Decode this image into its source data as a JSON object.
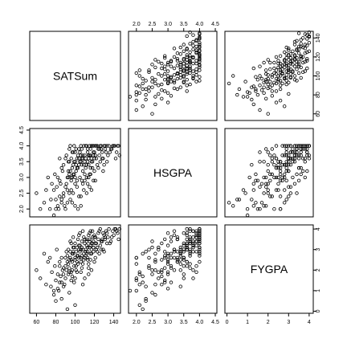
{
  "chart_data": {
    "type": "scatter",
    "variables": [
      "SATSum",
      "HSGPA",
      "FYGPA"
    ],
    "ranges": {
      "SATSum": [
        53,
        147
      ],
      "HSGPA": [
        1.75,
        4.55
      ],
      "FYGPA": [
        -0.1,
        4.2
      ]
    },
    "ticks": {
      "SATSum": [
        60,
        80,
        100,
        120,
        140
      ],
      "HSGPA": [
        2.0,
        2.5,
        3.0,
        3.5,
        4.0,
        4.5
      ],
      "FYGPA": [
        0,
        1,
        2,
        3,
        4
      ]
    },
    "tick_labels": {
      "SATSum": [
        "60",
        "80",
        "100",
        "120",
        "140"
      ],
      "HSGPA": [
        "2.0",
        "2.5",
        "3.0",
        "3.5",
        "4.0",
        "4.5"
      ],
      "FYGPA": [
        "0",
        "1",
        "2",
        "3",
        "4"
      ]
    },
    "grid": false,
    "legend": "none",
    "point_color": "#000000",
    "data": [
      [
        83,
        2.0,
        1.0
      ],
      [
        86,
        2.2,
        1.4
      ],
      [
        88,
        2.5,
        1.8
      ],
      [
        90,
        2.7,
        1.6
      ],
      [
        91,
        2.8,
        2.0
      ],
      [
        93,
        3.0,
        2.3
      ],
      [
        94,
        3.1,
        2.1
      ],
      [
        95,
        3.2,
        2.6
      ],
      [
        96,
        3.0,
        1.9
      ],
      [
        97,
        3.3,
        2.4
      ],
      [
        98,
        3.4,
        2.8
      ],
      [
        99,
        3.5,
        2.2
      ],
      [
        100,
        3.0,
        2.5
      ],
      [
        101,
        3.2,
        2.9
      ],
      [
        102,
        3.6,
        3.1
      ],
      [
        103,
        3.7,
        2.7
      ],
      [
        104,
        3.4,
        3.0
      ],
      [
        105,
        3.8,
        3.2
      ],
      [
        106,
        3.5,
        2.6
      ],
      [
        107,
        3.9,
        3.4
      ],
      [
        108,
        3.6,
        3.0
      ],
      [
        109,
        4.0,
        3.6
      ],
      [
        110,
        3.7,
        3.3
      ],
      [
        111,
        3.3,
        2.9
      ],
      [
        112,
        4.0,
        3.5
      ],
      [
        113,
        3.8,
        3.1
      ],
      [
        114,
        3.6,
        3.7
      ],
      [
        115,
        4.0,
        3.8
      ],
      [
        116,
        3.9,
        3.2
      ],
      [
        117,
        3.5,
        3.0
      ],
      [
        118,
        4.0,
        3.9
      ],
      [
        119,
        3.7,
        3.4
      ],
      [
        120,
        3.8,
        3.6
      ],
      [
        122,
        4.0,
        3.3
      ],
      [
        124,
        3.9,
        3.8
      ],
      [
        126,
        4.0,
        4.0
      ],
      [
        128,
        3.6,
        3.5
      ],
      [
        130,
        4.0,
        3.7
      ],
      [
        132,
        3.8,
        3.9
      ],
      [
        135,
        4.0,
        4.0
      ],
      [
        138,
        3.9,
        3.6
      ],
      [
        141,
        4.0,
        4.0
      ],
      [
        144,
        4.0,
        3.8
      ],
      [
        146,
        3.7,
        4.0
      ],
      [
        75,
        2.3,
        1.2
      ],
      [
        78,
        2.6,
        0.8
      ],
      [
        80,
        2.0,
        1.5
      ],
      [
        82,
        3.0,
        1.1
      ],
      [
        84,
        2.4,
        2.2
      ],
      [
        85,
        2.8,
        1.7
      ],
      [
        87,
        3.2,
        2.0
      ],
      [
        89,
        2.1,
        1.3
      ],
      [
        92,
        2.6,
        2.4
      ],
      [
        93,
        3.5,
        1.8
      ],
      [
        95,
        2.3,
        2.9
      ],
      [
        96,
        2.9,
        1.5
      ],
      [
        97,
        3.8,
        2.0
      ],
      [
        98,
        2.5,
        3.1
      ],
      [
        99,
        3.1,
        1.4
      ],
      [
        100,
        2.8,
        3.3
      ],
      [
        101,
        3.9,
        2.2
      ],
      [
        102,
        2.7,
        1.9
      ],
      [
        103,
        3.3,
        3.5
      ],
      [
        104,
        2.4,
        2.6
      ],
      [
        105,
        3.0,
        3.8
      ],
      [
        106,
        4.0,
        2.4
      ],
      [
        107,
        2.9,
        2.1
      ],
      [
        108,
        3.2,
        3.9
      ],
      [
        109,
        2.6,
        2.8
      ],
      [
        110,
        3.5,
        1.6
      ],
      [
        111,
        4.0,
        2.7
      ],
      [
        112,
        3.0,
        3.2
      ],
      [
        113,
        2.8,
        2.5
      ],
      [
        114,
        3.4,
        2.3
      ],
      [
        115,
        3.1,
        3.4
      ],
      [
        116,
        3.7,
        3.9
      ],
      [
        117,
        4.0,
        2.8
      ],
      [
        118,
        3.3,
        3.6
      ],
      [
        119,
        2.9,
        2.9
      ],
      [
        120,
        3.6,
        2.4
      ],
      [
        121,
        4.0,
        3.6
      ],
      [
        123,
        3.4,
        3.1
      ],
      [
        125,
        3.7,
        2.8
      ],
      [
        127,
        3.9,
        3.4
      ],
      [
        129,
        3.2,
        3.0
      ],
      [
        131,
        4.0,
        3.5
      ],
      [
        133,
        3.5,
        3.8
      ],
      [
        136,
        3.8,
        3.3
      ],
      [
        139,
        4.0,
        3.9
      ],
      [
        142,
        3.6,
        4.0
      ],
      [
        60,
        2.5,
        2.0
      ],
      [
        64,
        2.0,
        1.6
      ],
      [
        68,
        2.2,
        2.8
      ],
      [
        70,
        2.6,
        1.3
      ],
      [
        72,
        3.0,
        2.4
      ],
      [
        74,
        2.0,
        2.6
      ],
      [
        76,
        2.8,
        1.9
      ],
      [
        79,
        3.1,
        2.2
      ],
      [
        81,
        2.7,
        3.0
      ],
      [
        84,
        3.6,
        2.4
      ],
      [
        86,
        2.3,
        0.6
      ],
      [
        88,
        3.4,
        1.2
      ],
      [
        90,
        2.0,
        2.6
      ],
      [
        91,
        3.7,
        2.9
      ],
      [
        94,
        2.5,
        0.9
      ],
      [
        95,
        4.0,
        3.4
      ],
      [
        97,
        2.2,
        1.7
      ],
      [
        99,
        4.0,
        3.1
      ],
      [
        100,
        2.1,
        0.3
      ],
      [
        101,
        3.4,
        2.0
      ],
      [
        103,
        2.0,
        2.3
      ],
      [
        104,
        3.9,
        3.7
      ],
      [
        106,
        2.4,
        3.0
      ],
      [
        107,
        3.4,
        2.7
      ],
      [
        108,
        2.8,
        1.3
      ],
      [
        110,
        3.1,
        2.6
      ],
      [
        112,
        2.5,
        3.4
      ],
      [
        113,
        3.9,
        2.9
      ],
      [
        114,
        3.0,
        1.8
      ],
      [
        115,
        2.7,
        3.1
      ],
      [
        116,
        3.3,
        2.5
      ],
      [
        117,
        2.6,
        2.0
      ],
      [
        118,
        3.5,
        3.3
      ],
      [
        119,
        4.0,
        3.1
      ],
      [
        120,
        3.2,
        3.7
      ],
      [
        121,
        2.9,
        2.6
      ],
      [
        122,
        3.6,
        3.0
      ],
      [
        123,
        4.0,
        2.9
      ],
      [
        124,
        3.3,
        3.5
      ],
      [
        125,
        3.9,
        3.9
      ],
      [
        126,
        3.5,
        3.2
      ],
      [
        127,
        4.0,
        3.0
      ],
      [
        128,
        3.8,
        3.4
      ],
      [
        129,
        3.6,
        3.8
      ],
      [
        130,
        3.4,
        2.9
      ],
      [
        131,
        3.9,
        3.6
      ],
      [
        133,
        4.0,
        3.3
      ],
      [
        134,
        3.7,
        3.6
      ],
      [
        137,
        3.9,
        3.4
      ],
      [
        140,
        4.0,
        3.7
      ],
      [
        143,
        3.8,
        3.9
      ],
      [
        145,
        4.0,
        3.5
      ],
      [
        92,
        3.0,
        2.7
      ],
      [
        93,
        3.2,
        3.0
      ],
      [
        94,
        3.5,
        2.5
      ],
      [
        96,
        3.6,
        3.3
      ],
      [
        97,
        3.0,
        2.8
      ],
      [
        98,
        3.8,
        2.9
      ],
      [
        100,
        3.5,
        2.6
      ],
      [
        102,
        3.3,
        2.4
      ],
      [
        105,
        3.5,
        2.9
      ],
      [
        106,
        3.7,
        3.0
      ],
      [
        107,
        3.6,
        3.1
      ],
      [
        109,
        3.4,
        2.5
      ],
      [
        111,
        3.6,
        3.0
      ],
      [
        113,
        3.5,
        2.6
      ],
      [
        115,
        3.7,
        3.5
      ],
      [
        117,
        3.6,
        3.3
      ],
      [
        119,
        3.8,
        3.1
      ],
      [
        121,
        3.7,
        3.3
      ],
      [
        78,
        1.8,
        1.0
      ],
      [
        80,
        2.3,
        0.5
      ],
      [
        82,
        2.1,
        1.8
      ],
      [
        84,
        2.9,
        1.4
      ],
      [
        86,
        3.3,
        2.6
      ],
      [
        88,
        2.4,
        2.1
      ],
      [
        90,
        3.6,
        2.2
      ],
      [
        92,
        2.2,
        0.1
      ],
      [
        94,
        3.9,
        1.9
      ],
      [
        96,
        2.6,
        2.5
      ],
      [
        98,
        3.1,
        3.6
      ],
      [
        100,
        3.8,
        1.6
      ],
      [
        102,
        2.9,
        2.7
      ],
      [
        104,
        3.6,
        3.2
      ],
      [
        106,
        2.1,
        1.9
      ],
      [
        108,
        3.7,
        2.3
      ],
      [
        110,
        2.9,
        3.5
      ],
      [
        112,
        3.4,
        2.8
      ],
      [
        114,
        3.7,
        2.1
      ],
      [
        116,
        3.1,
        2.8
      ]
    ]
  }
}
